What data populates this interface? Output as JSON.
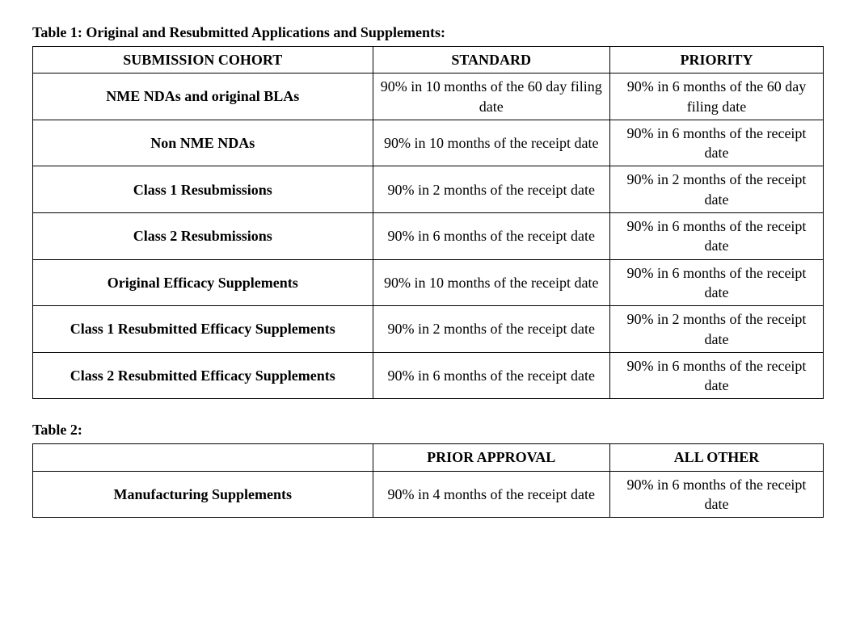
{
  "table1": {
    "title": "Table 1: Original and Resubmitted Applications and Supplements:",
    "headers": {
      "col0": "SUBMISSION COHORT",
      "col1": "STANDARD",
      "col2": "PRIORITY"
    },
    "rows": [
      {
        "label": "NME NDAs and original BLAs",
        "standard": "90% in 10 months of the 60 day filing date",
        "priority": "90% in 6 months of the 60 day filing date"
      },
      {
        "label": "Non NME NDAs",
        "standard": "90% in 10 months of the receipt date",
        "priority": "90% in 6 months of the receipt date"
      },
      {
        "label": "Class 1 Resubmissions",
        "standard": "90% in 2 months of the receipt date",
        "priority": "90% in 2 months of the receipt date"
      },
      {
        "label": "Class 2 Resubmissions",
        "standard": "90% in 6 months of the receipt date",
        "priority": "90% in 6 months of the receipt date"
      },
      {
        "label": "Original Efficacy Supplements",
        "standard": "90% in 10 months of the receipt date",
        "priority": "90% in 6 months of the receipt date"
      },
      {
        "label": "Class 1 Resubmitted Efficacy Supplements",
        "standard": "90% in 2 months of the receipt date",
        "priority": "90% in 2 months of the receipt date"
      },
      {
        "label": "Class 2 Resubmitted Efficacy Supplements",
        "standard": "90% in 6 months of the receipt date",
        "priority": "90% in 6 months of the receipt date"
      }
    ]
  },
  "table2": {
    "title": "Table 2:",
    "headers": {
      "col0": "",
      "col1": "PRIOR APPROVAL",
      "col2": "ALL OTHER"
    },
    "rows": [
      {
        "label": "Manufacturing Supplements",
        "prior_approval": "90% in 4 months of the receipt date",
        "all_other": "90% in 6 months of the receipt date"
      }
    ]
  }
}
